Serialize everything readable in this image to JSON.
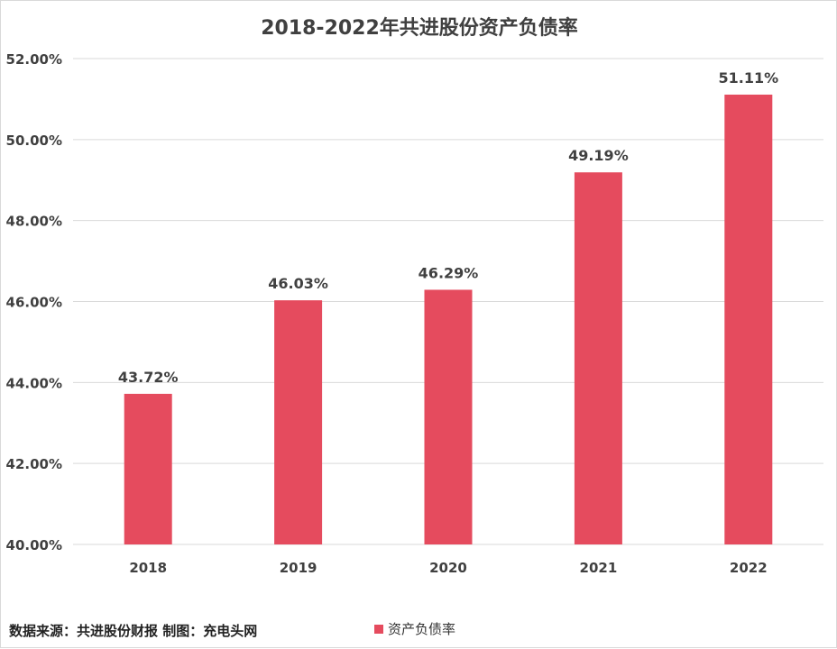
{
  "chart_data": {
    "type": "bar",
    "title": "2018-2022年共进股份资产负债率",
    "categories": [
      "2018",
      "2019",
      "2020",
      "2021",
      "2022"
    ],
    "series": [
      {
        "name": "资产负债率",
        "values": [
          43.72,
          46.03,
          46.29,
          49.19,
          51.11
        ],
        "color": "#e54b5e"
      }
    ],
    "data_labels": [
      "43.72%",
      "46.03%",
      "46.29%",
      "49.19%",
      "51.11%"
    ],
    "ylim": [
      40,
      52
    ],
    "yticks": [
      40,
      42,
      44,
      46,
      48,
      50,
      52
    ],
    "ytick_labels": [
      "40.00%",
      "42.00%",
      "44.00%",
      "46.00%",
      "48.00%",
      "50.00%",
      "52.00%"
    ],
    "xlabel": "",
    "ylabel": "",
    "grid": true,
    "legend_position": "bottom"
  },
  "footer": {
    "source": "数据来源：共进股份财报 制图：充电头网"
  }
}
